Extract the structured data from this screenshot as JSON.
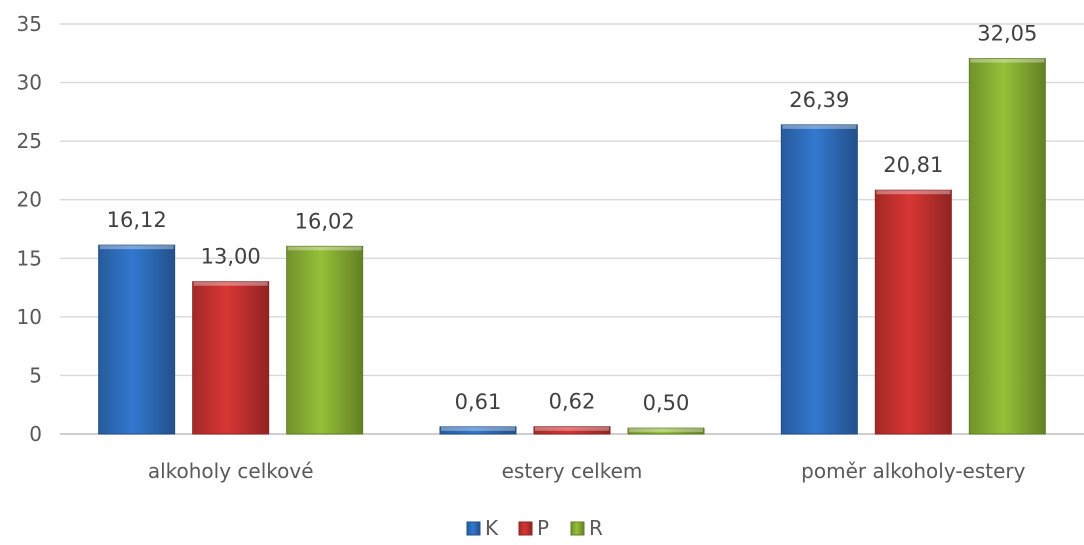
{
  "chart_data": {
    "type": "bar",
    "categories": [
      "alkoholy celkové",
      "estery celkem",
      "poměr alkoholy-estery"
    ],
    "series": [
      {
        "name": "K",
        "color": "#2f6fc0",
        "values": [
          16.12,
          0.61,
          26.39
        ],
        "labels": [
          "16,12",
          "0,61",
          "26,39"
        ]
      },
      {
        "name": "P",
        "color": "#c83230",
        "values": [
          13.0,
          0.62,
          20.81
        ],
        "labels": [
          "13,00",
          "0,62",
          "20,81"
        ]
      },
      {
        "name": "R",
        "color": "#8ab234",
        "values": [
          16.02,
          0.5,
          32.05
        ],
        "labels": [
          "16,02",
          "0,50",
          "32,05"
        ]
      }
    ],
    "ylim": [
      0,
      35
    ],
    "yticks": [
      "0",
      "5",
      "10",
      "15",
      "20",
      "25",
      "30",
      "35"
    ],
    "grid": true,
    "legend_position": "bottom"
  }
}
